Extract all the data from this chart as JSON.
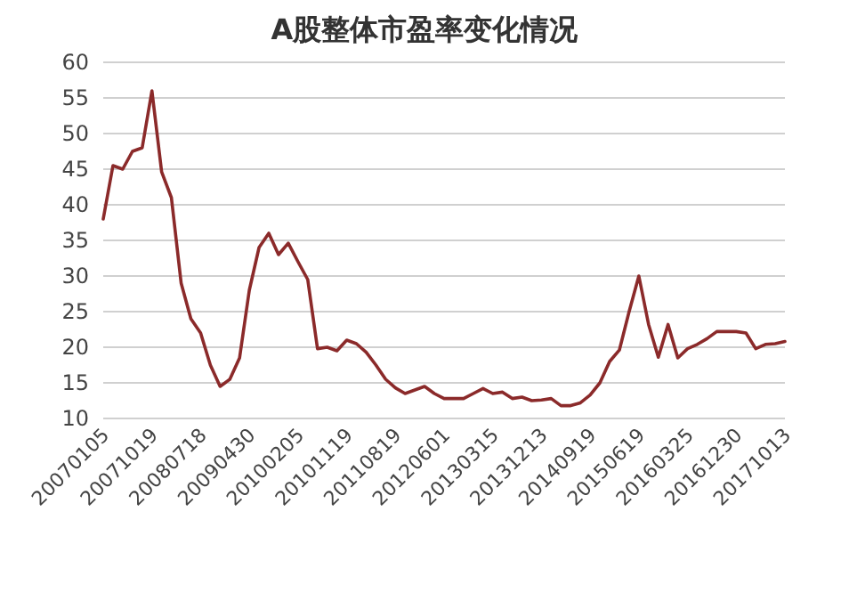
{
  "chart_data": {
    "type": "line",
    "title": "A股整体市盈率变化情况",
    "categories": [
      "20070105",
      null,
      null,
      null,
      null,
      "20071019",
      null,
      null,
      null,
      null,
      "20080718",
      null,
      null,
      null,
      null,
      "20090430",
      null,
      null,
      null,
      null,
      "20100205",
      null,
      null,
      null,
      null,
      "20101119",
      null,
      null,
      null,
      null,
      "20110819",
      null,
      null,
      null,
      null,
      "20120601",
      null,
      null,
      null,
      null,
      "20130315",
      null,
      null,
      null,
      null,
      "20131213",
      null,
      null,
      null,
      null,
      "20140919",
      null,
      null,
      null,
      null,
      "20150619",
      null,
      null,
      null,
      null,
      "20160325",
      null,
      null,
      null,
      null,
      "20161230",
      null,
      null,
      null,
      null,
      "20171013"
    ],
    "series": [
      {
        "color": "#8b2a2a",
        "values": [
          38,
          45.5,
          45,
          47.5,
          48,
          56,
          44.6,
          41,
          29,
          24,
          22,
          17.5,
          14.5,
          15.5,
          18.5,
          28,
          34,
          36,
          33,
          34.6,
          32,
          29.5,
          19.8,
          20,
          19.5,
          21,
          20.5,
          19.3,
          17.5,
          15.5,
          14.3,
          13.5,
          14,
          14.5,
          13.5,
          12.8,
          12.8,
          12.8,
          13.5,
          14.2,
          13.5,
          13.7,
          12.8,
          13,
          12.5,
          12.6,
          12.8,
          11.8,
          11.8,
          12.2,
          13.3,
          15,
          18,
          19.6,
          25,
          30,
          23.2,
          18.6,
          23.2,
          18.5,
          19.8,
          20.4,
          21.2,
          22.2,
          22.2,
          22.2,
          22,
          19.8,
          20.4,
          20.5,
          20.8
        ]
      }
    ],
    "ylim": [
      10,
      60
    ],
    "yticks": [
      10,
      15,
      20,
      25,
      30,
      35,
      40,
      45,
      50,
      55,
      60
    ],
    "grid": "y",
    "marker": "none",
    "line_style": "solid"
  }
}
